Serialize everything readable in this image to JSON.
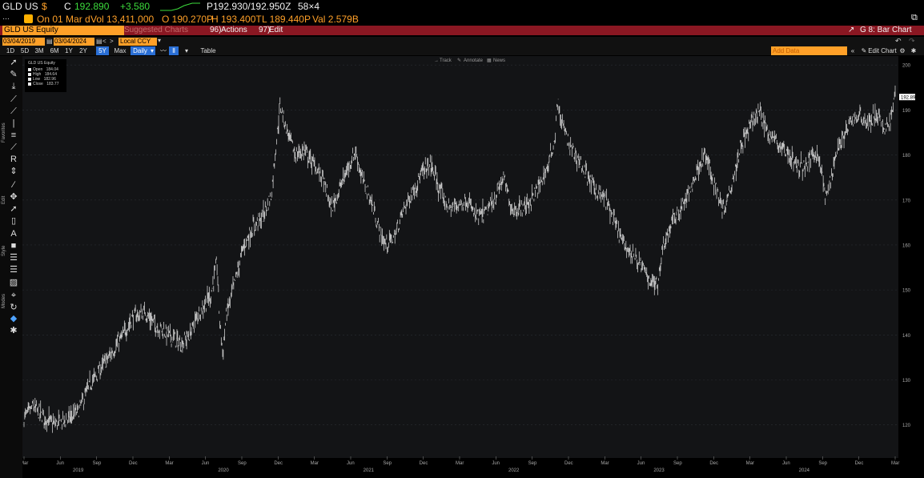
{
  "header": {
    "ticker": "GLD US",
    "currency_icon": "$",
    "price_prefix": "C",
    "last_price": "192.890",
    "change": "+3.580",
    "bid_ask": "P192.930/192.950Z",
    "size": "58×4",
    "date_label": "On 01 Mar d",
    "volume": "Vol 13,411,000",
    "open": "O 190.270P",
    "high": "H 193.400T",
    "low": "L 189.440P",
    "value": "Val 2.579B"
  },
  "command_bar": {
    "security": "GLD US Equity",
    "suggested": "Suggested Charts",
    "actions_num": "96)",
    "actions": "Actions",
    "edit_num": "97)",
    "edit": "Edit",
    "chart_title": "G 8: Bar Chart",
    "accent": "#8a1722"
  },
  "controls": {
    "start_date": "03/04/2019",
    "end_date": "03/04/2024",
    "currency": "Local CCY",
    "periods": [
      "1D",
      "5D",
      "3M",
      "6M",
      "1Y",
      "2Y",
      "5Y",
      "Max"
    ],
    "active_period": "5Y",
    "frequency": "Daily",
    "table": "Table",
    "add_data_placeholder": "Add Data",
    "edit_chart": "Edit Chart",
    "track": "Track",
    "annotate": "Annotate",
    "news": "News"
  },
  "sidebar": {
    "labels": [
      "Favorites",
      "Edit",
      "Style",
      "Modes"
    ]
  },
  "legend": {
    "title": "GLD US Equity",
    "items": [
      {
        "label": "Open",
        "value": "184.04"
      },
      {
        "label": "High",
        "value": "184.64"
      },
      {
        "label": "Low",
        "value": "182.96"
      },
      {
        "label": "Close",
        "value": "183.77"
      }
    ]
  },
  "chart_data": {
    "type": "line",
    "ylim": [
      113,
      202
    ],
    "y_ticks": [
      120,
      130,
      140,
      150,
      160,
      170,
      180,
      190,
      200
    ],
    "x_tick_labels": [
      "Mar",
      "Jun",
      "Sep",
      "Dec",
      "Mar",
      "Jun",
      "Sep",
      "Dec",
      "Mar",
      "Jun",
      "Sep",
      "Dec",
      "Mar",
      "Jun",
      "Sep",
      "Dec",
      "Mar",
      "Jun",
      "Sep",
      "Dec",
      "Mar",
      "Jun",
      "Sep",
      "Dec",
      "Mar"
    ],
    "year_labels": [
      "2019",
      "2020",
      "2021",
      "2022",
      "2023",
      "2024"
    ],
    "last_value_label": "192.89",
    "series": [
      {
        "values": [
          [
            0,
            121.5
          ],
          [
            3,
            124
          ],
          [
            6,
            122
          ],
          [
            10,
            120
          ],
          [
            14,
            121
          ],
          [
            18,
            123
          ],
          [
            22,
            129
          ],
          [
            26,
            133
          ],
          [
            30,
            137
          ],
          [
            33,
            140
          ],
          [
            36,
            144
          ],
          [
            40,
            145
          ],
          [
            44,
            142
          ],
          [
            48,
            140
          ],
          [
            52,
            138
          ],
          [
            55,
            140
          ],
          [
            58,
            145
          ],
          [
            62,
            149
          ],
          [
            64,
            156
          ],
          [
            65,
            142
          ],
          [
            66,
            136
          ],
          [
            67,
            144
          ],
          [
            70,
            152
          ],
          [
            73,
            160
          ],
          [
            76,
            164
          ],
          [
            79,
            166
          ],
          [
            82,
            171
          ],
          [
            84,
            185
          ],
          [
            85,
            191
          ],
          [
            87,
            186
          ],
          [
            90,
            180
          ],
          [
            93,
            181
          ],
          [
            96,
            178
          ],
          [
            99,
            175
          ],
          [
            102,
            168
          ],
          [
            105,
            173
          ],
          [
            108,
            178
          ],
          [
            110,
            181
          ],
          [
            112,
            175
          ],
          [
            115,
            170
          ],
          [
            118,
            163
          ],
          [
            120,
            160
          ],
          [
            123,
            162
          ],
          [
            126,
            168
          ],
          [
            129,
            172
          ],
          [
            132,
            176
          ],
          [
            135,
            178
          ],
          [
            138,
            172
          ],
          [
            141,
            168
          ],
          [
            144,
            169
          ],
          [
            147,
            170
          ],
          [
            150,
            166
          ],
          [
            153,
            167
          ],
          [
            156,
            170
          ],
          [
            159,
            175
          ],
          [
            162,
            168
          ],
          [
            165,
            168
          ],
          [
            168,
            170
          ],
          [
            171,
            173
          ],
          [
            174,
            178
          ],
          [
            176,
            183
          ],
          [
            177,
            192
          ],
          [
            178,
            188
          ],
          [
            181,
            182
          ],
          [
            184,
            179
          ],
          [
            187,
            175
          ],
          [
            190,
            172
          ],
          [
            193,
            170
          ],
          [
            196,
            165
          ],
          [
            199,
            160
          ],
          [
            202,
            158
          ],
          [
            205,
            155
          ],
          [
            208,
            152
          ],
          [
            210,
            151
          ],
          [
            212,
            160
          ],
          [
            215,
            165
          ],
          [
            218,
            168
          ],
          [
            221,
            172
          ],
          [
            224,
            178
          ],
          [
            226,
            180
          ],
          [
            228,
            176
          ],
          [
            230,
            172
          ],
          [
            232,
            168
          ],
          [
            234,
            172
          ],
          [
            236,
            177
          ],
          [
            238,
            183
          ],
          [
            240,
            185
          ],
          [
            242,
            188
          ],
          [
            244,
            190
          ],
          [
            246,
            186
          ],
          [
            248,
            184
          ],
          [
            251,
            182
          ],
          [
            254,
            180
          ],
          [
            257,
            177
          ],
          [
            260,
            178
          ],
          [
            262,
            181
          ],
          [
            264,
            179
          ],
          [
            266,
            170
          ],
          [
            268,
            176
          ],
          [
            270,
            182
          ],
          [
            272,
            184
          ],
          [
            274,
            187
          ],
          [
            277,
            189
          ],
          [
            280,
            187
          ],
          [
            283,
            189
          ],
          [
            285,
            186
          ],
          [
            287,
            187
          ],
          [
            289,
            192.9
          ]
        ]
      }
    ]
  }
}
